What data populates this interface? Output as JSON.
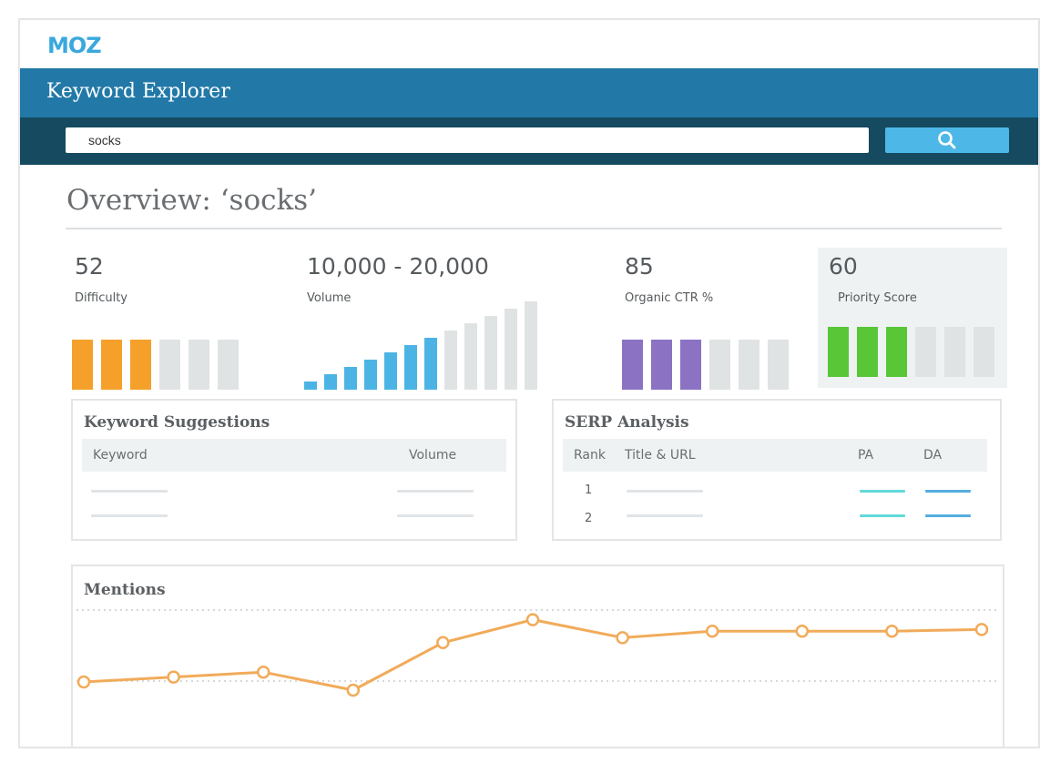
{
  "brand": {
    "logo_text": "MOZ",
    "color": "#3aa8dd"
  },
  "header": {
    "title": "Keyword Explorer",
    "color": "#2279a8"
  },
  "search": {
    "value": "socks",
    "button_icon": "search-icon",
    "button_color": "#4db8e8"
  },
  "overview": {
    "title": "Overview: ‘socks’"
  },
  "metrics": {
    "difficulty": {
      "value": "52",
      "label": "Difficulty",
      "filled": 3,
      "total": 6,
      "color": "#f5a02b"
    },
    "volume": {
      "value": "10,000 - 20,000",
      "label": "Volume",
      "filled": 7,
      "total": 12,
      "color": "#4cb4e5"
    },
    "ctr": {
      "value": "85",
      "label": "Organic CTR %",
      "filled": 3,
      "total": 6,
      "color": "#8b72c3"
    },
    "priority": {
      "value": "60",
      "label": "Priority Score",
      "filled": 3,
      "total": 6,
      "color": "#58c637"
    }
  },
  "keyword_suggestions": {
    "title": "Keyword Suggestions",
    "columns": [
      "Keyword",
      "Volume"
    ]
  },
  "serp_analysis": {
    "title": "SERP Analysis",
    "columns": [
      "Rank",
      "Title & URL",
      "PA",
      "DA"
    ],
    "ranks": [
      "1",
      "2"
    ]
  },
  "mentions": {
    "title": "Mentions",
    "line_color": "#f1ab5a",
    "values": [
      1.0,
      1.3,
      1.6,
      0.5,
      3.4,
      4.8,
      3.7,
      4.1,
      4.1,
      4.1,
      4.2
    ]
  }
}
